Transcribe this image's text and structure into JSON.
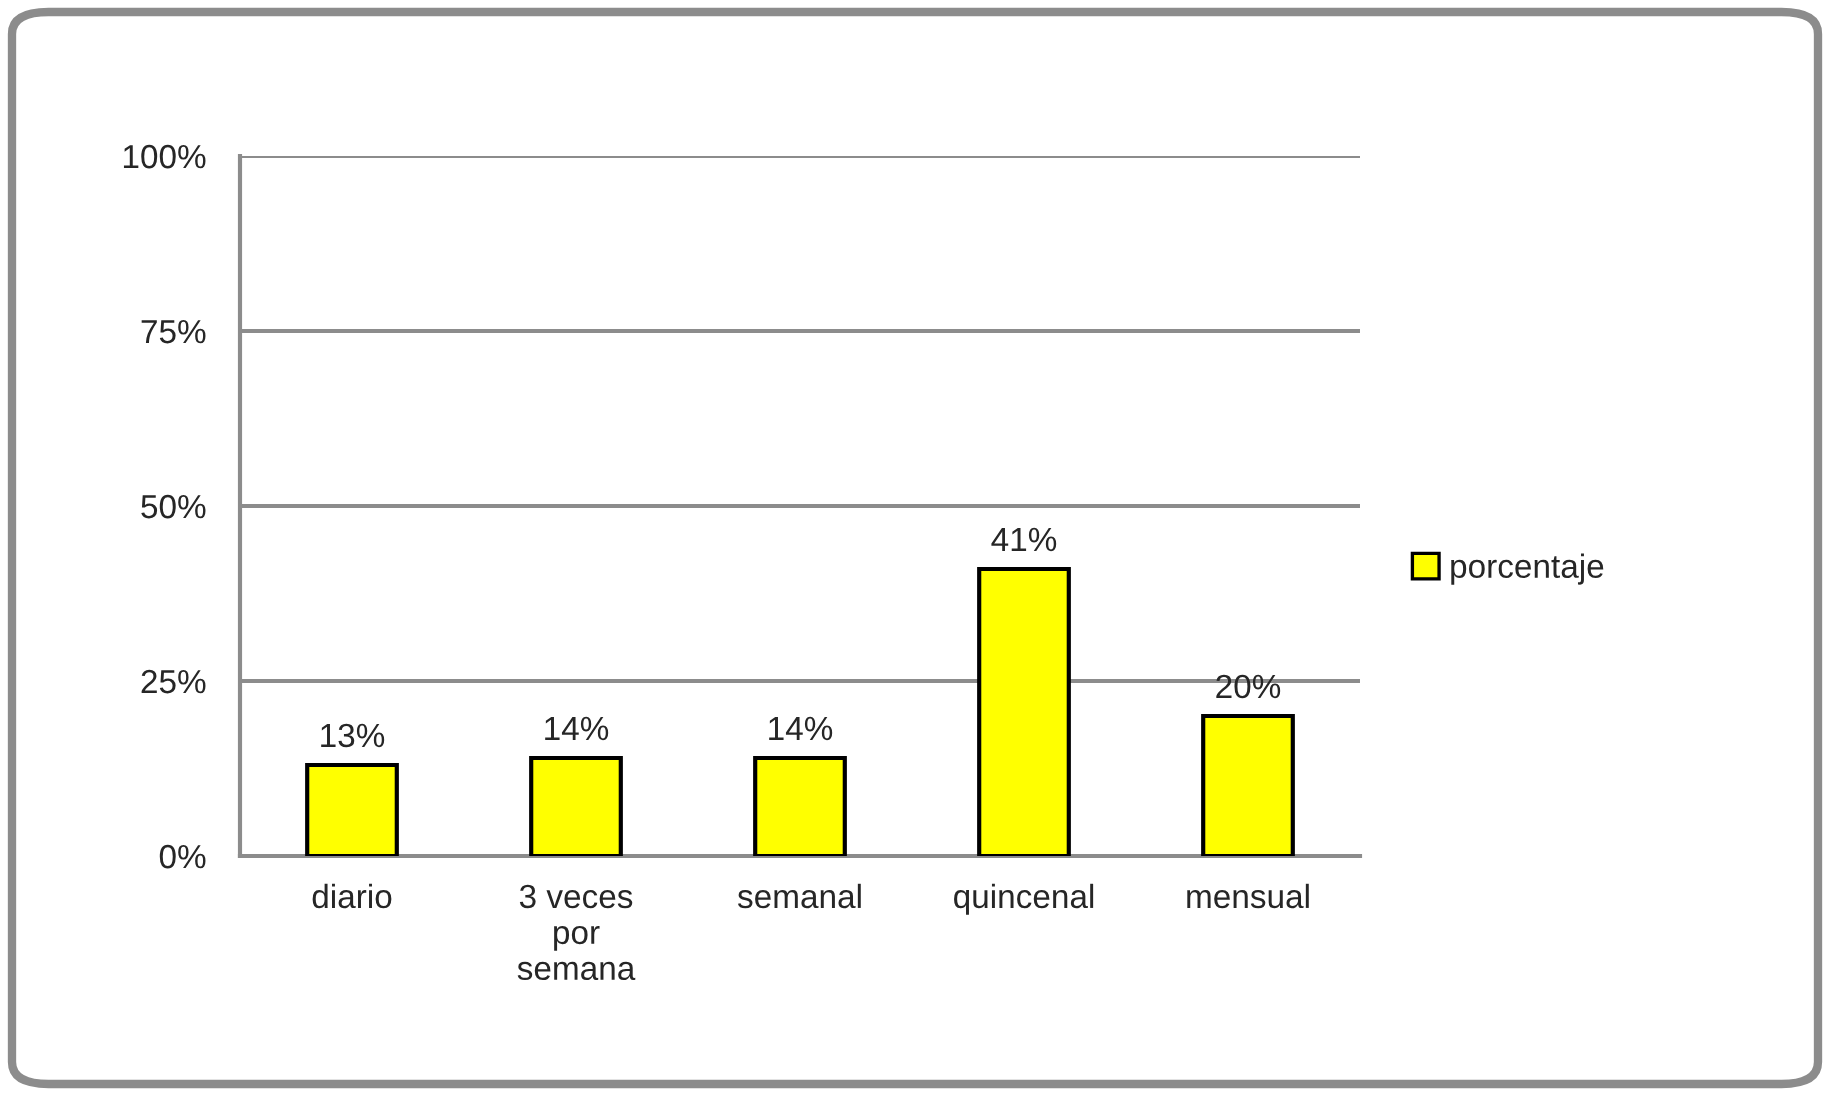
{
  "chart_data": {
    "type": "bar",
    "categories": [
      "diario",
      "3 veces\npor\nsemana",
      "semanal",
      "quincenal",
      "mensual"
    ],
    "series": [
      {
        "name": "porcentaje",
        "color": "#ffff00",
        "values": [
          13,
          14,
          14,
          41,
          20
        ],
        "value_labels": [
          "13%",
          "14%",
          "14%",
          "41%",
          "20%"
        ]
      }
    ],
    "ylim": [
      0,
      100
    ],
    "yticks": [
      {
        "value": 0,
        "label": "0%"
      },
      {
        "value": 25,
        "label": "25%"
      },
      {
        "value": 50,
        "label": "50%"
      },
      {
        "value": 75,
        "label": "75%"
      },
      {
        "value": 100,
        "label": "100%"
      }
    ],
    "grid": "y",
    "legend": "right"
  }
}
